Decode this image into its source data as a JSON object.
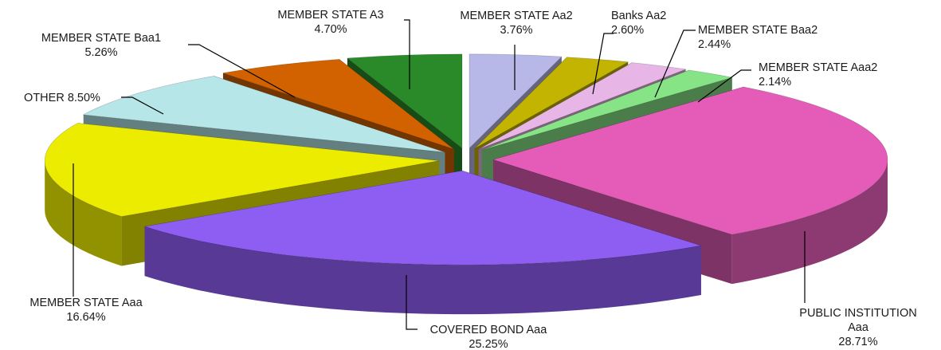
{
  "chart_data": {
    "type": "pie",
    "title": "",
    "slices": [
      {
        "name": "MEMBER STATE Aa2",
        "value": 3.76,
        "label_value": "3.76%",
        "color": "#b8b8e8"
      },
      {
        "name": "Banks Aa2",
        "value": 2.6,
        "label_value": "2.60%",
        "color": "#c2b400"
      },
      {
        "name": "MEMBER STATE Baa2",
        "value": 2.44,
        "label_value": "2.44%",
        "color": "#e8b6e6"
      },
      {
        "name": "MEMBER STATE Aaa2",
        "value": 2.14,
        "label_value": "2.14%",
        "color": "#86e486"
      },
      {
        "name": "PUBLIC INSTITUTION Aaa",
        "value": 28.71,
        "label_value": "28.71%",
        "color": "#e45cb8"
      },
      {
        "name": "COVERED BOND Aaa",
        "value": 25.25,
        "label_value": "25.25%",
        "color": "#8e5ef2"
      },
      {
        "name": "MEMBER STATE Aaa",
        "value": 16.64,
        "label_value": "16.64%",
        "color": "#ecec00"
      },
      {
        "name": "OTHER",
        "value": 8.5,
        "label_value": "8.50%",
        "color": "#b6e6e8"
      },
      {
        "name": "MEMBER STATE Baa1",
        "value": 5.26,
        "label_value": "5.26%",
        "color": "#d26200"
      },
      {
        "name": "MEMBER STATE A3",
        "value": 4.7,
        "label_value": "4.70%",
        "color": "#2a8a2a"
      }
    ],
    "style": "3d-exploded",
    "legend": "none",
    "labels": [
      {
        "lines": [
          "MEMBER STATE Aa2",
          "3.76%"
        ]
      },
      {
        "lines": [
          "Banks Aa2",
          "2.60%"
        ]
      },
      {
        "lines": [
          "MEMBER STATE Baa2",
          "2.44%"
        ]
      },
      {
        "lines": [
          "MEMBER STATE Aaa2",
          "2.14%"
        ]
      },
      {
        "lines": [
          "PUBLIC INSTITUTION",
          "Aaa",
          "28.71%"
        ]
      },
      {
        "lines": [
          "COVERED BOND Aaa",
          "25.25%"
        ]
      },
      {
        "lines": [
          "MEMBER STATE Aaa",
          "16.64%"
        ]
      },
      {
        "lines": [
          "OTHER  8.50%"
        ]
      },
      {
        "lines": [
          "MEMBER STATE Baa1",
          "5.26%"
        ]
      },
      {
        "lines": [
          "MEMBER STATE A3",
          "4.70%"
        ]
      }
    ]
  }
}
